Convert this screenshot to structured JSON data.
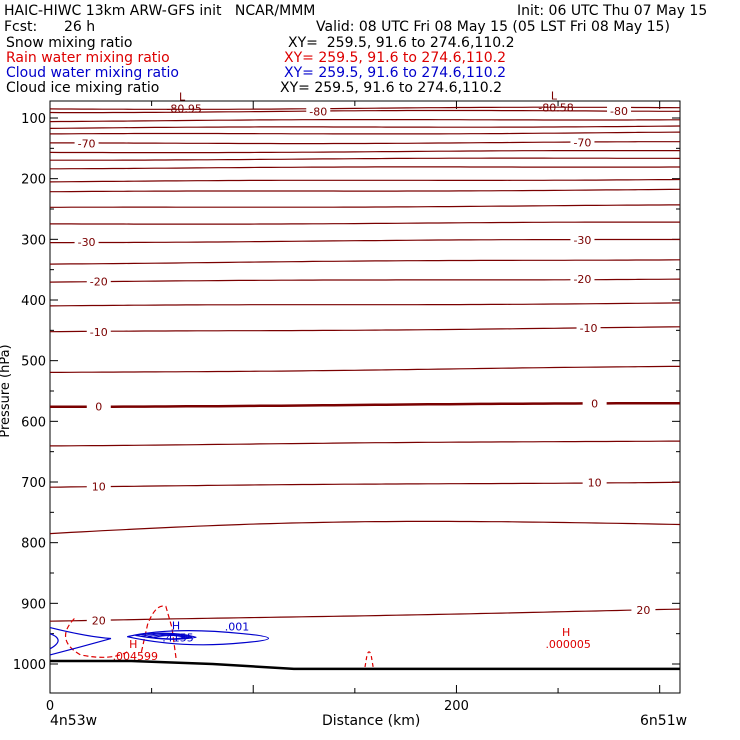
{
  "header": {
    "title": "HAIC-HIWC 13km ARW-GFS init   NCAR/MMM",
    "init": "Init: 06 UTC Thu 07 May 15",
    "fcst_label": "Fcst:",
    "fcst_value": "26 h",
    "valid": "Valid: 08 UTC Fri 08 May 15 (05 LST Fri 08 May 15)"
  },
  "colors": {
    "snow": "#000000",
    "rain": "#dd0000",
    "cloud_water": "#0000cc",
    "cloud_ice": "#000000",
    "isotherm": "#7a0000",
    "terrain": "#000000"
  },
  "legend": [
    {
      "name": "Snow mixing ratio",
      "xy": "XY=  259.5, 91.6 to 274.6,110.2",
      "color": "#000000"
    },
    {
      "name": "Rain water mixing ratio",
      "xy": "XY= 259.5, 91.6 to 274.6,110.2",
      "color": "#dd0000"
    },
    {
      "name": "Cloud water mixing ratio",
      "xy": "XY= 259.5, 91.6 to 274.6,110.2",
      "color": "#0000cc"
    },
    {
      "name": "Cloud ice mixing ratio",
      "xy": "XY= 259.5, 91.6 to 274.6,110.2",
      "color": "#000000"
    }
  ],
  "chart_data": {
    "type": "line",
    "xlabel": "Distance (km)",
    "ylabel": "Pressure (hPa)",
    "xlim": [
      0,
      310
    ],
    "ylim": [
      1050,
      70
    ],
    "x_ticks": [
      0,
      200
    ],
    "y_ticks": [
      100,
      200,
      300,
      400,
      500,
      600,
      700,
      800,
      900,
      1000
    ],
    "x_endpoints": {
      "left": "4n53w",
      "right": "6n51w"
    },
    "isotherms": [
      {
        "p_left": 85,
        "p_right": 83,
        "wave": 1.2
      },
      {
        "p_left": 90,
        "p_right": 88,
        "wave": 1.2,
        "labels": [
          {
            "text": "-80",
            "x": 132
          },
          {
            "text": "-80",
            "x": 280
          }
        ]
      },
      {
        "p_left": 105,
        "p_right": 102,
        "wave": 1.0
      },
      {
        "p_left": 117,
        "p_right": 113,
        "wave": 1.0
      },
      {
        "p_left": 127,
        "p_right": 124,
        "wave": 1.0
      },
      {
        "p_left": 142,
        "p_right": 140,
        "wave": 1.0,
        "labels": [
          {
            "text": "-70",
            "x": 18
          },
          {
            "text": "-70",
            "x": 262
          }
        ]
      },
      {
        "p_left": 157,
        "p_right": 154,
        "wave": 0.8
      },
      {
        "p_left": 169,
        "p_right": 166,
        "wave": 0.8
      },
      {
        "p_left": 183,
        "p_right": 180,
        "wave": 0.8
      },
      {
        "p_left": 205,
        "p_right": 201,
        "wave": 0.8
      },
      {
        "p_left": 222,
        "p_right": 218,
        "wave": 0.8
      },
      {
        "p_left": 248,
        "p_right": 244,
        "wave": 0.8
      },
      {
        "p_left": 275,
        "p_right": 272,
        "wave": 0.8
      },
      {
        "p_left": 305,
        "p_right": 300,
        "wave": 0.8,
        "labels": [
          {
            "text": "-30",
            "x": 18
          },
          {
            "text": "-30",
            "x": 262
          }
        ]
      },
      {
        "p_left": 340,
        "p_right": 333,
        "wave": 0.8
      },
      {
        "p_left": 370,
        "p_right": 365,
        "wave": 0.8,
        "labels": [
          {
            "text": "-20",
            "x": 24
          },
          {
            "text": "-20",
            "x": 262
          }
        ]
      },
      {
        "p_left": 410,
        "p_right": 405,
        "wave": 0.8
      },
      {
        "p_left": 453,
        "p_right": 445,
        "wave": 0.8,
        "labels": [
          {
            "text": "-10",
            "x": 24
          },
          {
            "text": "-10",
            "x": 265
          }
        ]
      },
      {
        "p_left": 520,
        "p_right": 510,
        "wave": 0.8
      },
      {
        "p_left": 576,
        "p_right": 570,
        "wave": 0.6,
        "bold": true,
        "labels": [
          {
            "text": "0",
            "x": 24
          },
          {
            "text": "0",
            "x": 268
          }
        ]
      },
      {
        "p_left": 640,
        "p_right": 632,
        "wave": 0.6
      },
      {
        "p_left": 708,
        "p_right": 700,
        "wave": 0.6,
        "labels": [
          {
            "text": "10",
            "x": 24
          },
          {
            "text": "10",
            "x": 268
          }
        ]
      },
      {
        "p_left": 785,
        "p_right": 770,
        "wave": 0.6,
        "dip": true
      },
      {
        "p_left": 930,
        "p_right": 910,
        "wave": 0.6,
        "labels": [
          {
            "text": "20",
            "x": 24
          },
          {
            "text": "20",
            "x": 292
          }
        ]
      }
    ],
    "terrain_p": [
      [
        0,
        995
      ],
      [
        40,
        995
      ],
      [
        80,
        1000
      ],
      [
        120,
        1008
      ],
      [
        310,
        1008
      ]
    ],
    "extrema": [
      {
        "kind": "L",
        "value": "-80.95",
        "x": 65,
        "p": 88,
        "color": "#7a0000"
      },
      {
        "kind": "L",
        "value": "-80.58",
        "x": 248,
        "p": 86,
        "color": "#7a0000"
      },
      {
        "kind": "H",
        "value": ".4155",
        "x": 62,
        "p": 960,
        "color": "#0000cc"
      },
      {
        "kind": "H",
        "value": ".004599",
        "x": 41,
        "p": 990,
        "color": "#dd0000"
      },
      {
        "kind": "H",
        "value": ".000005",
        "x": 254,
        "p": 970,
        "color": "#dd0000"
      }
    ],
    "cloud_water_label": {
      "text": ".001",
      "x": 92,
      "p": 945
    }
  }
}
